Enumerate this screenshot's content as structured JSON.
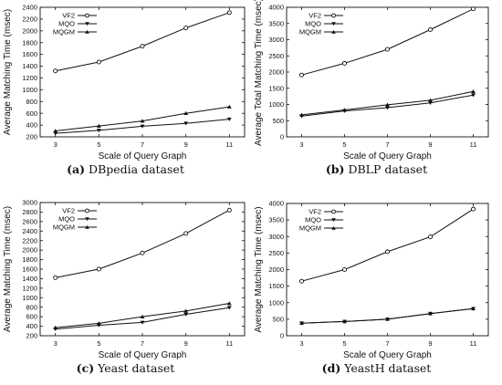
{
  "chart_data": [
    {
      "type": "line",
      "caption_letter": "(a)",
      "caption_text": "DBpedia dataset",
      "xlabel": "Scale of Query Graph",
      "ylabel": "Average Matching Time (msec)",
      "x": [
        3,
        5,
        7,
        9,
        11
      ],
      "xlim": [
        2.3,
        11.7
      ],
      "ylim": [
        200,
        2400
      ],
      "yticks": [
        200,
        400,
        600,
        800,
        1000,
        1200,
        1400,
        1600,
        1800,
        2000,
        2200,
        2400
      ],
      "legend": "top-left",
      "series": [
        {
          "name": "VF2",
          "marker": "circle",
          "values": [
            1320,
            1470,
            1740,
            2050,
            2310
          ]
        },
        {
          "name": "MQO",
          "marker": "triangle-down",
          "values": [
            260,
            310,
            380,
            430,
            500
          ]
        },
        {
          "name": "MQGM",
          "marker": "triangle-up",
          "values": [
            300,
            385,
            470,
            600,
            710
          ]
        }
      ]
    },
    {
      "type": "line",
      "caption_letter": "(b)",
      "caption_text": "DBLP dataset",
      "xlabel": "Scale of Query Graph",
      "ylabel": "Average Total Matching Time (msec)",
      "x": [
        3,
        5,
        7,
        9,
        11
      ],
      "xlim": [
        2.3,
        11.7
      ],
      "ylim": [
        0,
        4000
      ],
      "yticks": [
        0,
        500,
        1000,
        1500,
        2000,
        2500,
        3000,
        3500,
        4000
      ],
      "legend": "top-left",
      "series": [
        {
          "name": "VF2",
          "marker": "circle",
          "values": [
            1910,
            2270,
            2700,
            3310,
            3950
          ]
        },
        {
          "name": "MQO",
          "marker": "triangle-down",
          "values": [
            640,
            800,
            900,
            1050,
            1290
          ]
        },
        {
          "name": "MQGM",
          "marker": "triangle-up",
          "values": [
            680,
            830,
            990,
            1130,
            1400
          ]
        }
      ]
    },
    {
      "type": "line",
      "caption_letter": "(c)",
      "caption_text": "Yeast dataset",
      "xlabel": "Scale of Query Graph",
      "ylabel": "Average Matching Time (msec)",
      "x": [
        3,
        5,
        7,
        9,
        11
      ],
      "xlim": [
        2.3,
        11.7
      ],
      "ylim": [
        200,
        3000
      ],
      "yticks": [
        200,
        400,
        600,
        800,
        1000,
        1200,
        1400,
        1600,
        1800,
        2000,
        2200,
        2400,
        2600,
        2800,
        3000
      ],
      "legend": "top-left",
      "series": [
        {
          "name": "VF2",
          "marker": "circle",
          "values": [
            1420,
            1600,
            1940,
            2350,
            2840
          ]
        },
        {
          "name": "MQO",
          "marker": "triangle-down",
          "values": [
            340,
            420,
            480,
            650,
            790
          ]
        },
        {
          "name": "MQGM",
          "marker": "triangle-up",
          "values": [
            370,
            460,
            600,
            720,
            880
          ]
        }
      ]
    },
    {
      "type": "line",
      "caption_letter": "(d)",
      "caption_text": "YeastH dataset",
      "xlabel": "Scale of Query Graph",
      "ylabel": "Average Matching Time (msec)",
      "x": [
        3,
        5,
        7,
        9,
        11
      ],
      "xlim": [
        2.3,
        11.7
      ],
      "ylim": [
        0,
        4000
      ],
      "yticks": [
        0,
        500,
        1000,
        1500,
        2000,
        2500,
        3000,
        3500,
        4000
      ],
      "legend": "top-left",
      "series": [
        {
          "name": "VF2",
          "marker": "circle",
          "values": [
            1650,
            2000,
            2540,
            2990,
            3830
          ]
        },
        {
          "name": "MQO",
          "marker": "triangle-down",
          "values": [
            380,
            430,
            500,
            670,
            820
          ]
        },
        {
          "name": "MQGM",
          "marker": "triangle-up",
          "values": [
            380,
            430,
            500,
            670,
            820
          ]
        }
      ]
    }
  ]
}
